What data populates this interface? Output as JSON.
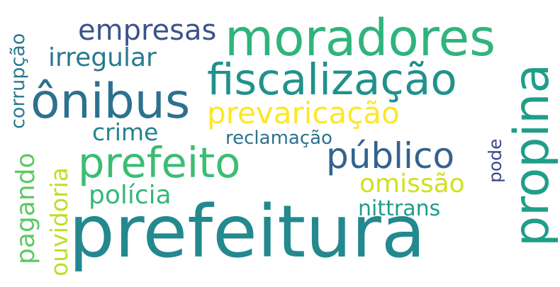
{
  "word_cloud": {
    "background_color": "#ffffff",
    "words": [
      {
        "key": "prefeitura",
        "text": "prefeitura",
        "color": "#23898e",
        "orientation": "horizontal"
      },
      {
        "key": "moradores",
        "text": "moradores",
        "color": "#2fb47c",
        "orientation": "horizontal"
      },
      {
        "key": "onibus",
        "text": "ônibus",
        "color": "#2d718e",
        "orientation": "horizontal"
      },
      {
        "key": "propina",
        "text": "propina",
        "color": "#1f9e89",
        "orientation": "vertical"
      },
      {
        "key": "fiscalizacao",
        "text": "fiscalização",
        "color": "#21918c",
        "orientation": "horizontal"
      },
      {
        "key": "prefeito",
        "text": "prefeito",
        "color": "#3dbc74",
        "orientation": "horizontal"
      },
      {
        "key": "publico",
        "text": "público",
        "color": "#33638d",
        "orientation": "horizontal"
      },
      {
        "key": "prevaricacao",
        "text": "prevaricação",
        "color": "#fde725",
        "orientation": "horizontal"
      },
      {
        "key": "empresas",
        "text": "empresas",
        "color": "#3b528b",
        "orientation": "horizontal"
      },
      {
        "key": "irregular",
        "text": "irregular",
        "color": "#297a8e",
        "orientation": "horizontal"
      },
      {
        "key": "policia",
        "text": "polícia",
        "color": "#35b779",
        "orientation": "horizontal"
      },
      {
        "key": "omissao",
        "text": "omissão",
        "color": "#d0e11c",
        "orientation": "horizontal"
      },
      {
        "key": "pagando",
        "text": "pagando",
        "color": "#5ec962",
        "orientation": "vertical"
      },
      {
        "key": "ouvidoria",
        "text": "ouvidoria",
        "color": "#bddf26",
        "orientation": "vertical"
      },
      {
        "key": "crime",
        "text": "crime",
        "color": "#26828e",
        "orientation": "horizontal"
      },
      {
        "key": "nittrans",
        "text": "nittrans",
        "color": "#1f9e89",
        "orientation": "horizontal"
      },
      {
        "key": "corrupcao",
        "text": "corrupção",
        "color": "#2a788e",
        "orientation": "vertical"
      },
      {
        "key": "reclamacao",
        "text": "reclamação",
        "color": "#2c728e",
        "orientation": "horizontal"
      },
      {
        "key": "pode",
        "text": "pode",
        "color": "#3e4989",
        "orientation": "vertical"
      }
    ]
  }
}
